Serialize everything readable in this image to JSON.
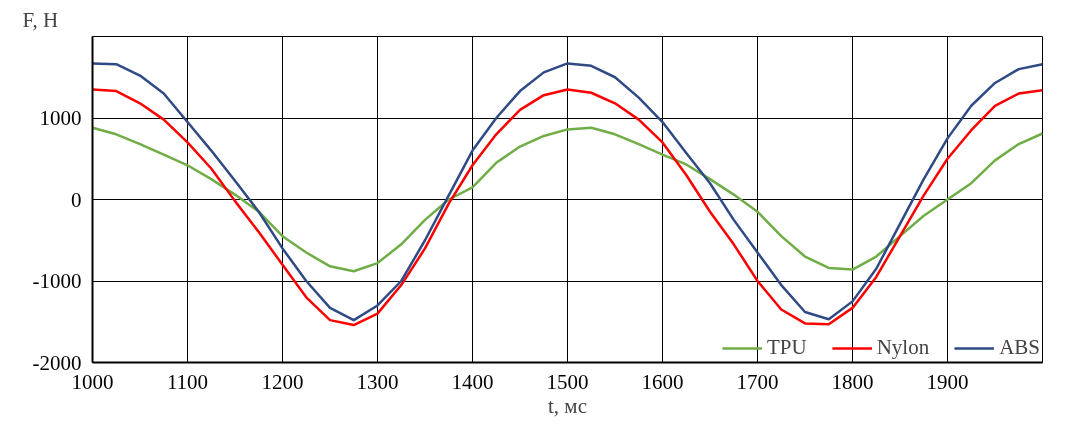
{
  "chart_data": {
    "type": "line",
    "xlabel": "t, мс",
    "ylabel": "F, Н",
    "x": [
      1000,
      1025,
      1050,
      1075,
      1100,
      1125,
      1150,
      1175,
      1200,
      1225,
      1250,
      1275,
      1300,
      1325,
      1350,
      1375,
      1400,
      1425,
      1450,
      1475,
      1500,
      1525,
      1550,
      1575,
      1600,
      1625,
      1650,
      1675,
      1700,
      1725,
      1750,
      1775,
      1800,
      1825,
      1850,
      1875,
      1900,
      1925,
      1950,
      1975,
      2000
    ],
    "series": [
      {
        "name": "TPU",
        "color": "#70ad47",
        "values": [
          880,
          800,
          680,
          550,
          420,
          250,
          60,
          -150,
          -450,
          -650,
          -820,
          -880,
          -780,
          -550,
          -250,
          0,
          150,
          450,
          650,
          780,
          860,
          880,
          800,
          680,
          550,
          430,
          250,
          60,
          -150,
          -450,
          -700,
          -840,
          -860,
          -700,
          -450,
          -200,
          0,
          200,
          480,
          680,
          810
        ]
      },
      {
        "name": "Nylon",
        "color": "#ff0000",
        "values": [
          1350,
          1330,
          1180,
          980,
          700,
          380,
          -20,
          -400,
          -800,
          -1200,
          -1480,
          -1540,
          -1400,
          -1050,
          -600,
          -50,
          420,
          800,
          1100,
          1280,
          1350,
          1310,
          1180,
          980,
          700,
          300,
          -150,
          -550,
          -1000,
          -1350,
          -1520,
          -1530,
          -1330,
          -950,
          -450,
          50,
          500,
          850,
          1150,
          1300,
          1340
        ]
      },
      {
        "name": "ABS",
        "color": "#2f4a85",
        "values": [
          1670,
          1660,
          1520,
          1300,
          950,
          600,
          230,
          -150,
          -600,
          -1000,
          -1330,
          -1480,
          -1300,
          -1000,
          -500,
          50,
          600,
          1000,
          1330,
          1560,
          1670,
          1640,
          1500,
          1250,
          950,
          570,
          200,
          -250,
          -650,
          -1050,
          -1380,
          -1470,
          -1250,
          -850,
          -300,
          250,
          750,
          1150,
          1430,
          1600,
          1660
        ]
      }
    ],
    "xlim": [
      1000,
      2000
    ],
    "ylim": [
      -2000,
      2000
    ],
    "xticks": [
      1000,
      1100,
      1200,
      1300,
      1400,
      1500,
      1600,
      1700,
      1800,
      1900,
      {
        "value": 2000,
        "label": null
      }
    ],
    "yticks": [
      -2000,
      -1000,
      0,
      1000,
      {
        "value": 2000,
        "label": null
      }
    ],
    "grid": true,
    "legend": "bottom right",
    "marker": "none",
    "line_style": "solid"
  }
}
